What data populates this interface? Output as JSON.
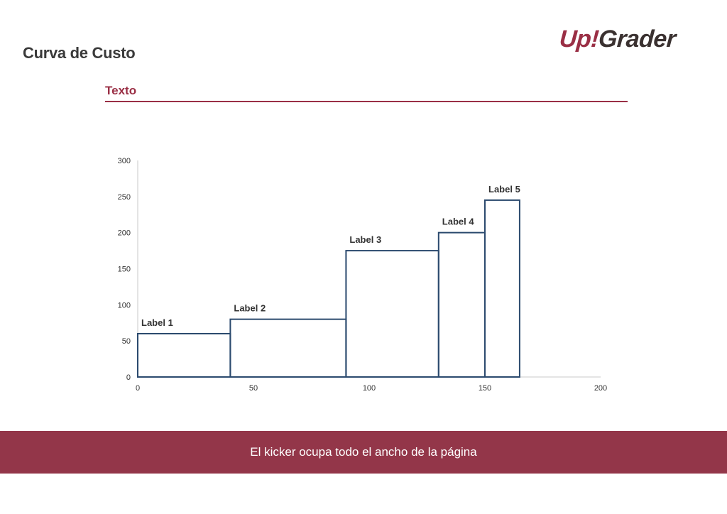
{
  "header": {
    "title": "Curva de Custo",
    "logo_up": "Up!",
    "logo_grader": "Grader"
  },
  "section": {
    "title": "Texto"
  },
  "chart_data": {
    "type": "bar",
    "subtype": "variable-width-step",
    "title": "",
    "xlabel": "",
    "ylabel": "",
    "xlim": [
      0,
      200
    ],
    "ylim": [
      0,
      300
    ],
    "xticks": [
      0,
      50,
      100,
      150,
      200
    ],
    "yticks": [
      0,
      50,
      100,
      150,
      200,
      250,
      300
    ],
    "grid": false,
    "bars": [
      {
        "label": "Label 1",
        "x_start": 0,
        "x_end": 40,
        "value": 60
      },
      {
        "label": "Label 2",
        "x_start": 40,
        "x_end": 90,
        "value": 80
      },
      {
        "label": "Label 3",
        "x_start": 90,
        "x_end": 130,
        "value": 175
      },
      {
        "label": "Label 4",
        "x_start": 130,
        "x_end": 150,
        "value": 200
      },
      {
        "label": "Label 5",
        "x_start": 150,
        "x_end": 165,
        "value": 245
      }
    ],
    "colors": {
      "bar_stroke": "#2b4a6e",
      "axis": "#c8c8c8",
      "text": "#333333"
    }
  },
  "kicker": {
    "text": "El kicker ocupa todo el ancho de la página"
  },
  "colors": {
    "accent": "#9a2f45",
    "kicker_bg": "#933649"
  }
}
